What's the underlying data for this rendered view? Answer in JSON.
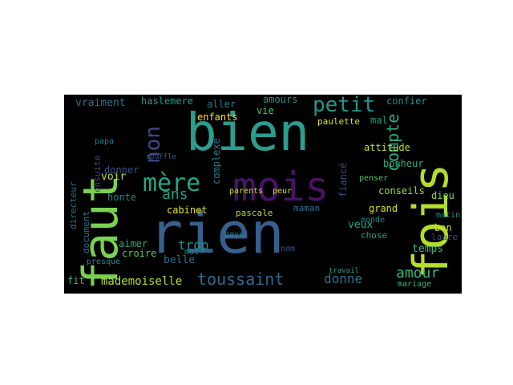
{
  "cloud": {
    "background": "#000000",
    "words": [
      {
        "text": "faut",
        "color": "#7ad151",
        "vertical": true
      },
      {
        "text": "bien",
        "color": "#2a9d8e"
      },
      {
        "text": "rien",
        "color": "#35608d"
      },
      {
        "text": "fois",
        "color": "#b5de2b",
        "vertical": true
      },
      {
        "text": "mois",
        "color": "#471365"
      },
      {
        "text": "mère",
        "color": "#22a784"
      },
      {
        "text": "non",
        "color": "#3f4788",
        "vertical": true
      },
      {
        "text": "petit",
        "color": "#1f968b"
      },
      {
        "text": "compte",
        "color": "#28ae80",
        "vertical": true
      },
      {
        "text": "toussaint",
        "color": "#31688e"
      },
      {
        "text": "ans",
        "color": "#1f9e89"
      },
      {
        "text": "amour",
        "color": "#35b779"
      },
      {
        "text": "donne",
        "color": "#2c728e"
      },
      {
        "text": "mademoiselle",
        "color": "#b0dd2f"
      },
      {
        "text": "vraiment",
        "color": "#2c728e"
      },
      {
        "text": "temps",
        "color": "#3aba76"
      },
      {
        "text": "trop",
        "color": "#21918c"
      },
      {
        "text": "enfants",
        "color": "#fde725"
      },
      {
        "text": "voir",
        "color": "#c5e021"
      },
      {
        "text": "veux",
        "color": "#22a884"
      },
      {
        "text": "croire",
        "color": "#54c568"
      },
      {
        "text": "belle",
        "color": "#2e6e8e"
      },
      {
        "text": "conseils",
        "color": "#a2da37"
      },
      {
        "text": "amours",
        "color": "#1e9c89"
      },
      {
        "text": "haslemere",
        "color": "#1fa088"
      },
      {
        "text": "confier",
        "color": "#21918c"
      },
      {
        "text": "attitude",
        "color": "#bddf26"
      },
      {
        "text": "bonheur",
        "color": "#2cb17e"
      },
      {
        "text": "grand",
        "color": "#d8e219"
      },
      {
        "text": "dieu",
        "color": "#86d549"
      },
      {
        "text": "bon",
        "color": "#c2df23"
      },
      {
        "text": "laure",
        "color": "#3e4989"
      },
      {
        "text": "chose",
        "color": "#1fa287"
      },
      {
        "text": "vie",
        "color": "#50c46a"
      },
      {
        "text": "aller",
        "color": "#2a778e"
      },
      {
        "text": "paulette",
        "color": "#e2e418"
      },
      {
        "text": "mal",
        "color": "#1f978b"
      },
      {
        "text": "complexe",
        "color": "#277f8e",
        "vertical": true
      },
      {
        "text": "fiancé",
        "color": "#3e4a89",
        "vertical": true
      },
      {
        "text": "donner",
        "color": "#3b528b"
      },
      {
        "text": "honte",
        "color": "#24878e"
      },
      {
        "text": "directeur",
        "color": "#2e6f8e",
        "vertical": true
      },
      {
        "text": "ensuite",
        "color": "#404588",
        "vertical": true
      },
      {
        "text": "aimer",
        "color": "#29af7f"
      },
      {
        "text": "cabinet",
        "color": "#e5e419"
      },
      {
        "text": "maman",
        "color": "#2e6d8e"
      },
      {
        "text": "pascale",
        "color": "#b8de29"
      },
      {
        "text": "mot",
        "color": "#23898e"
      },
      {
        "text": "nom",
        "color": "#38598c"
      },
      {
        "text": "fit",
        "color": "#32b67a"
      },
      {
        "text": "presque",
        "color": "#238a8d"
      },
      {
        "text": "document",
        "color": "#2d708e",
        "vertical": true
      },
      {
        "text": "parents",
        "color": "#d0e11c"
      },
      {
        "text": "peur",
        "color": "#c8e020"
      },
      {
        "text": "penser",
        "color": "#52c569"
      },
      {
        "text": "monde",
        "color": "#25848e"
      },
      {
        "text": "matin",
        "color": "#228c8d"
      },
      {
        "text": "erreur",
        "color": "#440154",
        "vertical": true
      },
      {
        "text": "pays",
        "color": "#277e8e"
      },
      {
        "text": "papa",
        "color": "#26828e"
      },
      {
        "text": "mariage",
        "color": "#3aba76"
      },
      {
        "text": "travail",
        "color": "#20a486"
      },
      {
        "text": "souffle",
        "color": "#34618d"
      }
    ]
  }
}
